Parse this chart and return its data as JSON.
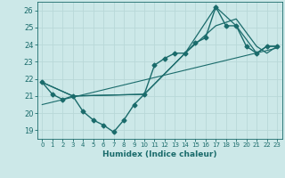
{
  "xlabel": "Humidex (Indice chaleur)",
  "background_color": "#cce8e8",
  "grid_color": "#b8d8d8",
  "line_color": "#1a6b6b",
  "xlim": [
    -0.5,
    23.5
  ],
  "ylim": [
    18.5,
    26.5
  ],
  "xticks": [
    0,
    1,
    2,
    3,
    4,
    5,
    6,
    7,
    8,
    9,
    10,
    11,
    12,
    13,
    14,
    15,
    16,
    17,
    18,
    19,
    20,
    21,
    22,
    23
  ],
  "yticks": [
    19,
    20,
    21,
    22,
    23,
    24,
    25,
    26
  ],
  "series": [
    {
      "x": [
        0,
        1,
        2,
        3,
        4,
        5,
        6,
        7,
        8,
        9,
        10,
        11,
        12,
        13,
        14,
        15,
        16,
        17,
        18,
        19,
        20,
        21,
        22,
        23
      ],
      "y": [
        21.8,
        21.1,
        20.8,
        21.0,
        20.1,
        19.6,
        19.3,
        18.9,
        19.6,
        20.5,
        21.1,
        22.8,
        23.2,
        23.5,
        23.5,
        24.1,
        24.4,
        26.2,
        25.1,
        25.1,
        23.9,
        23.5,
        23.9,
        23.9
      ],
      "marker": "D",
      "markersize": 2.5,
      "linewidth": 1.0
    },
    {
      "x": [
        0,
        3,
        10,
        14,
        17,
        19,
        21,
        22,
        23
      ],
      "y": [
        21.8,
        21.0,
        21.1,
        23.5,
        26.2,
        25.1,
        23.5,
        23.9,
        23.9
      ],
      "marker": null,
      "linewidth": 0.9
    },
    {
      "x": [
        0,
        3,
        10,
        14,
        17,
        19,
        21,
        22,
        23
      ],
      "y": [
        21.8,
        21.0,
        21.1,
        23.5,
        25.1,
        25.5,
        23.9,
        23.5,
        23.9
      ],
      "marker": null,
      "linewidth": 0.9
    },
    {
      "x": [
        0,
        23
      ],
      "y": [
        20.5,
        23.8
      ],
      "marker": null,
      "linewidth": 0.8
    }
  ]
}
